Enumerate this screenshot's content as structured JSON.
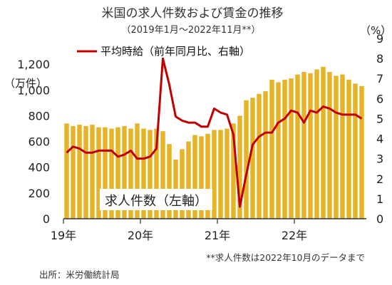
{
  "chart_data": {
    "type": "bar+line",
    "title": "米国の求人件数および賃金の推移",
    "subtitle": "（2019年1月～2022年11月**）",
    "y_left": {
      "unit_label": "（万件）",
      "ylim": [
        0,
        1400
      ],
      "ticks": [
        0,
        200,
        400,
        600,
        800,
        "1,000",
        "1,200"
      ],
      "tick_values": [
        0,
        200,
        400,
        600,
        800,
        1000,
        1200
      ]
    },
    "y_right": {
      "unit_label": "（%）",
      "ylim": [
        0,
        9
      ],
      "ticks": [
        0,
        1,
        2,
        3,
        4,
        5,
        6,
        7,
        8,
        9
      ]
    },
    "x_tick_labels": [
      "19年",
      "20年",
      "21年",
      "22年"
    ],
    "months_total": 47,
    "bar_series": {
      "name": "求人件数（左軸）",
      "color": "#E6B428",
      "values": [
        740,
        720,
        730,
        720,
        730,
        710,
        710,
        700,
        710,
        720,
        700,
        740,
        700,
        690,
        700,
        680,
        580,
        460,
        540,
        600,
        650,
        640,
        660,
        690,
        690,
        700,
        740,
        800,
        920,
        940,
        970,
        990,
        1080,
        1060,
        1080,
        1090,
        1120,
        1140,
        1130,
        1160,
        1180,
        1140,
        1110,
        1120,
        1080,
        1050,
        1030
      ]
    },
    "line_series": {
      "name": "平均時給（前年同月比、右軸）",
      "color": "#C00000",
      "values": [
        3.3,
        3.6,
        3.5,
        3.3,
        3.3,
        3.4,
        3.4,
        3.4,
        3.1,
        3.2,
        3.4,
        3.0,
        3.0,
        3.1,
        3.5,
        8.0,
        6.7,
        5.1,
        4.9,
        4.8,
        4.8,
        4.6,
        4.6,
        5.5,
        5.3,
        5.2,
        4.2,
        0.6,
        2.2,
        3.7,
        4.1,
        4.3,
        4.3,
        4.8,
        5.0,
        5.4,
        5.3,
        4.8,
        5.4,
        5.3,
        5.6,
        5.5,
        5.3,
        5.2,
        5.2,
        5.2,
        5.0
      ]
    }
  },
  "note": "**求人件数は2022年10月のデータまで",
  "source": "出所：米労働統計局"
}
